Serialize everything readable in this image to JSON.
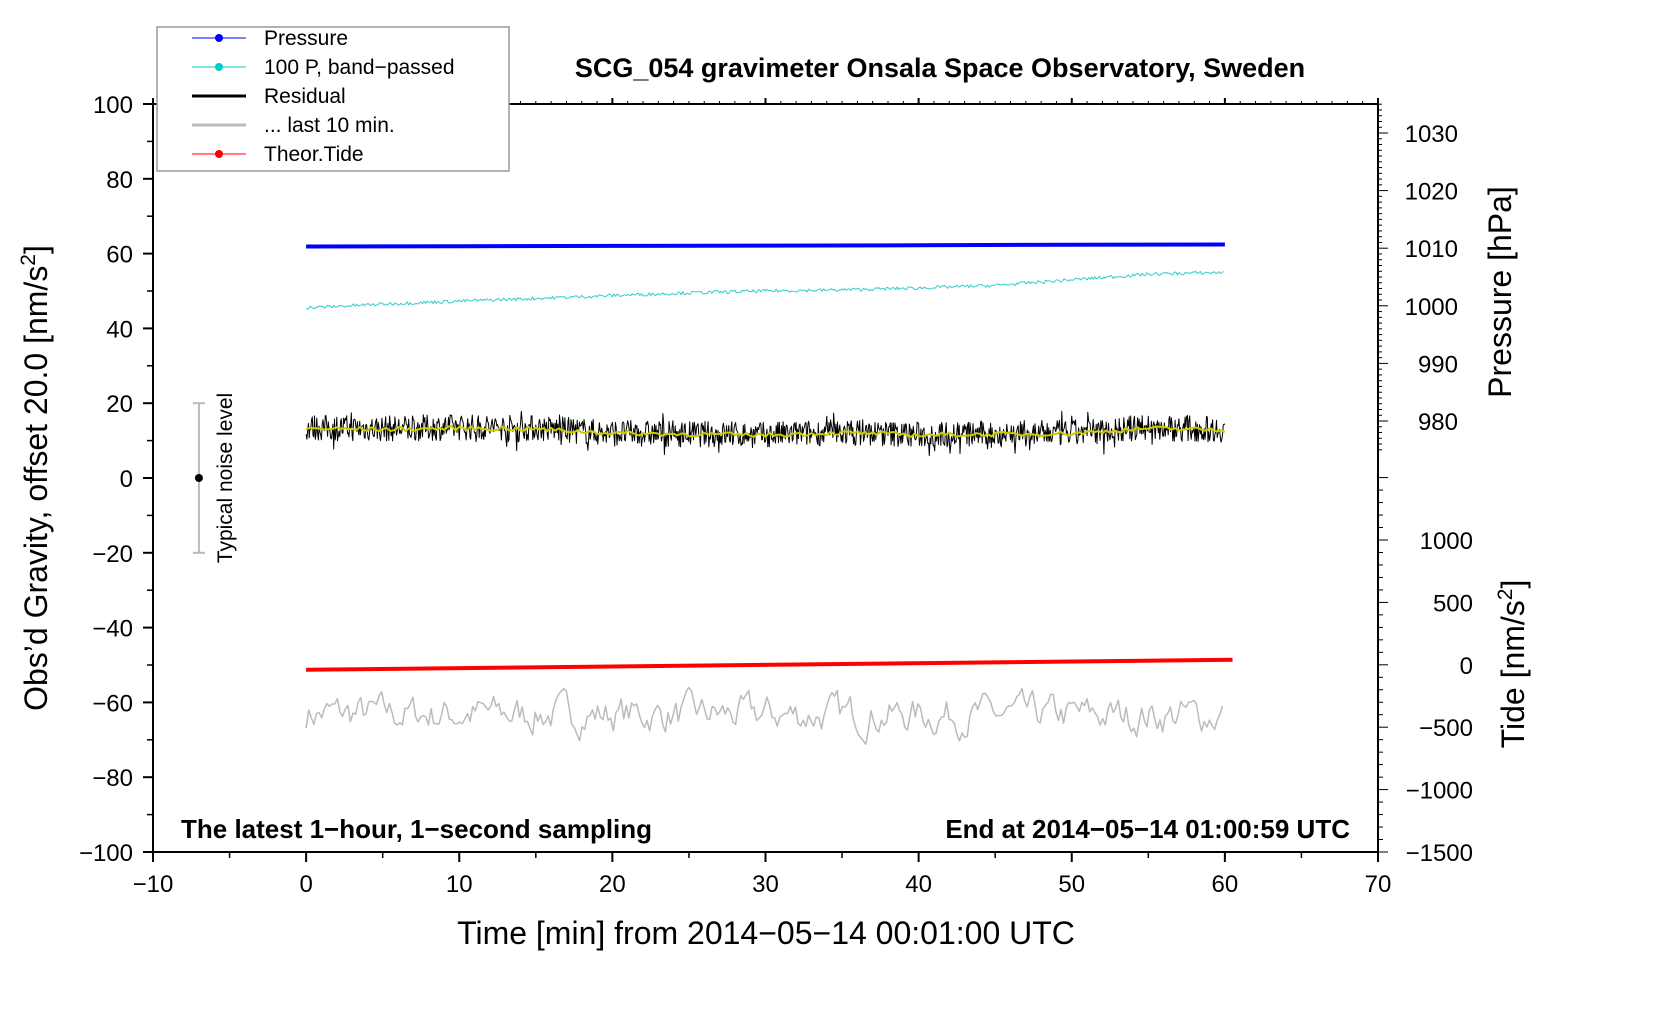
{
  "chart_data": {
    "type": "line",
    "title": "SCG_054 gravimeter Onsala Space Observatory, Sweden",
    "xlabel": "Time [min] from 2014−05−14 00:01:00 UTC",
    "ylabel": "Obs’d Gravity, offset 20.0 [nm/s²]",
    "ylabel_main": "Obs’d Gravity, offset 20.0 [nm/s",
    "ylabel_sup": "2",
    "ylabel_end": "]",
    "y2label": "Pressure [hPa]",
    "y3label_main": "Tide [nm/s",
    "y3label_sup": "2",
    "y3label_end": "]",
    "xlim": [
      -10,
      70
    ],
    "ylim": [
      -100,
      100
    ],
    "pressure_ylim_ticks": [
      980,
      1030
    ],
    "tide_ylim": [
      -1500,
      1000
    ],
    "xticks": [
      "−10",
      "0",
      "10",
      "20",
      "30",
      "40",
      "50",
      "60",
      "70"
    ],
    "xtick_values": [
      -10,
      0,
      10,
      20,
      30,
      40,
      50,
      60,
      70
    ],
    "yticks": [
      "100",
      "80",
      "60",
      "40",
      "20",
      "0",
      "−20",
      "−40",
      "−60",
      "−80",
      "−100"
    ],
    "ytick_values": [
      100,
      80,
      60,
      40,
      20,
      0,
      -20,
      -40,
      -60,
      -80,
      -100
    ],
    "pressure_ticks": [
      "1030",
      "1020",
      "1010",
      "1000",
      "990",
      "980"
    ],
    "pressure_tick_values": [
      1030,
      1020,
      1010,
      1000,
      990,
      980
    ],
    "tide_ticks": [
      "1000",
      "500",
      "0",
      "−500",
      "−1000",
      "−1500"
    ],
    "tide_tick_values": [
      1000,
      500,
      0,
      -500,
      -1000,
      -1500
    ],
    "annotation_left": "The latest 1−hour, 1−second sampling",
    "annotation_right": "End at 2014−05−14 01:00:59 UTC",
    "noise_label": "Typical noise level",
    "noise_bar": {
      "x": -7,
      "center": 0,
      "half_range": 20
    },
    "legend": {
      "placement": "top-left",
      "entries": [
        {
          "label": "Pressure",
          "color": "#0000ff"
        },
        {
          "label": "100 P, band−passed",
          "color": "#00cccc"
        },
        {
          "label": "Residual",
          "color": "#000000"
        },
        {
          "label": "... last 10 min.",
          "color": "#bbbbbb"
        },
        {
          "label": "Theor.Tide",
          "color": "#ff0000"
        }
      ]
    },
    "series": [
      {
        "name": "Pressure",
        "axis": "pressure_hPa",
        "color": "#0000ff",
        "x": [
          0,
          10,
          20,
          30,
          40,
          50,
          60
        ],
        "values": [
          1010.3,
          1010.35,
          1010.4,
          1010.45,
          1010.5,
          1010.6,
          1010.65
        ]
      },
      {
        "name": "100 P, band-passed",
        "axis": "gravity",
        "color": "#33cccc",
        "x": [
          0,
          5,
          10,
          15,
          20,
          25,
          30,
          35,
          40,
          45,
          50,
          55,
          60
        ],
        "values": [
          45.5,
          46.5,
          47.3,
          48.0,
          48.8,
          49.5,
          50.0,
          50.3,
          50.8,
          51.5,
          53.0,
          54.5,
          55.0
        ]
      },
      {
        "name": "Residual",
        "axis": "gravity",
        "color": "#000000",
        "noise_amplitude": 3.5,
        "x": [
          0,
          5,
          10,
          15,
          20,
          25,
          30,
          35,
          40,
          45,
          50,
          55,
          60
        ],
        "values": [
          13.5,
          13.2,
          13.6,
          13.4,
          12.0,
          11.8,
          11.5,
          12.3,
          11.6,
          11.8,
          12.0,
          13.5,
          13.0
        ]
      },
      {
        "name": "Residual smoothed",
        "axis": "gravity",
        "color": "#cccc00",
        "x": [
          0,
          5,
          10,
          15,
          20,
          25,
          30,
          35,
          40,
          45,
          50,
          55,
          60
        ],
        "values": [
          13.2,
          13.0,
          13.3,
          13.1,
          12.0,
          11.7,
          11.5,
          12.1,
          11.5,
          11.7,
          11.9,
          13.3,
          12.8
        ]
      },
      {
        "name": "... last 10 min.",
        "axis": "gravity",
        "color": "#bbbbbb",
        "mean": -62,
        "noise_amplitude": 3.5,
        "x": [
          0,
          60
        ],
        "values": [
          -63,
          -63.5
        ]
      },
      {
        "name": "Theor.Tide",
        "axis": "tide_nm_s2",
        "color": "#ff0000",
        "x": [
          0,
          60.5
        ],
        "values": [
          -40,
          40
        ]
      }
    ]
  }
}
